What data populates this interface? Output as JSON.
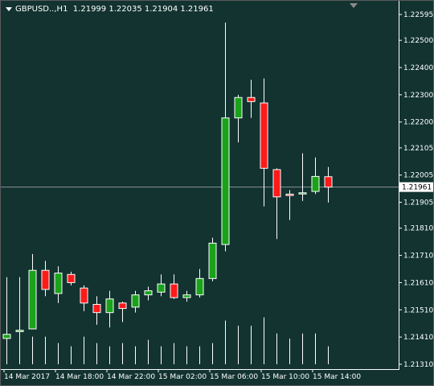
{
  "header": {
    "symbol": "GBPUSD..,H1",
    "ohlc": "1.21999 1.22035 1.21904 1.21961"
  },
  "colors": {
    "background": "#123330",
    "bull": "#1aa31a",
    "bear": "#ff1a1a",
    "wick": "#ffffff",
    "current_line": "#8a9391",
    "volume": "#ffffff"
  },
  "price_scale": {
    "min": 1.2131,
    "max": 1.22595,
    "labels": [
      "1.22595",
      "1.22500",
      "1.22400",
      "1.22300",
      "1.22200",
      "1.22105",
      "1.22005",
      "1.21905",
      "1.21810",
      "1.21710",
      "1.21610",
      "1.21510",
      "1.21410",
      "1.21310"
    ],
    "current_price": "1.21961"
  },
  "time_axis": {
    "labels": [
      "14 Mar 2017",
      "14 Mar 18:00",
      "14 Mar 22:00",
      "15 Mar 02:00",
      "15 Mar 06:00",
      "15 Mar 10:00",
      "15 Mar 14:00"
    ]
  },
  "chart_data": {
    "type": "candlestick",
    "symbol": "GBPUSD..",
    "timeframe": "H1",
    "candles": [
      {
        "open": 1.21405,
        "high": 1.2163,
        "low": 1.2138,
        "close": 1.2142
      },
      {
        "open": 1.2143,
        "high": 1.2163,
        "low": 1.2138,
        "close": 1.21435
      },
      {
        "open": 1.2144,
        "high": 1.21715,
        "low": 1.2144,
        "close": 1.21655
      },
      {
        "open": 1.21655,
        "high": 1.2169,
        "low": 1.2156,
        "close": 1.21585
      },
      {
        "open": 1.2157,
        "high": 1.2167,
        "low": 1.21535,
        "close": 1.21645
      },
      {
        "open": 1.2164,
        "high": 1.2165,
        "low": 1.216,
        "close": 1.2161
      },
      {
        "open": 1.2159,
        "high": 1.216,
        "low": 1.21505,
        "close": 1.21535
      },
      {
        "open": 1.2153,
        "high": 1.2156,
        "low": 1.21455,
        "close": 1.215
      },
      {
        "open": 1.215,
        "high": 1.2158,
        "low": 1.21445,
        "close": 1.2155
      },
      {
        "open": 1.21535,
        "high": 1.2154,
        "low": 1.21465,
        "close": 1.21515
      },
      {
        "open": 1.2152,
        "high": 1.2158,
        "low": 1.215,
        "close": 1.21565
      },
      {
        "open": 1.21565,
        "high": 1.21595,
        "low": 1.21545,
        "close": 1.2158
      },
      {
        "open": 1.21575,
        "high": 1.2164,
        "low": 1.2156,
        "close": 1.21605
      },
      {
        "open": 1.21605,
        "high": 1.2164,
        "low": 1.2155,
        "close": 1.21555
      },
      {
        "open": 1.21555,
        "high": 1.2158,
        "low": 1.2154,
        "close": 1.21565
      },
      {
        "open": 1.21565,
        "high": 1.2166,
        "low": 1.21555,
        "close": 1.21625
      },
      {
        "open": 1.21625,
        "high": 1.21775,
        "low": 1.21615,
        "close": 1.21755
      },
      {
        "open": 1.2175,
        "high": 1.22565,
        "low": 1.21725,
        "close": 1.22215
      },
      {
        "open": 1.22215,
        "high": 1.223,
        "low": 1.22125,
        "close": 1.2229
      },
      {
        "open": 1.2229,
        "high": 1.22355,
        "low": 1.22215,
        "close": 1.22275
      },
      {
        "open": 1.2227,
        "high": 1.2236,
        "low": 1.2189,
        "close": 1.2203
      },
      {
        "open": 1.22025,
        "high": 1.2203,
        "low": 1.2177,
        "close": 1.21925
      },
      {
        "open": 1.21935,
        "high": 1.2195,
        "low": 1.2184,
        "close": 1.2193
      },
      {
        "open": 1.2194,
        "high": 1.22085,
        "low": 1.2191,
        "close": 1.2194
      },
      {
        "open": 1.21945,
        "high": 1.2207,
        "low": 1.21935,
        "close": 1.22
      },
      {
        "open": 1.21999,
        "high": 1.22035,
        "low": 1.21904,
        "close": 1.21961
      }
    ],
    "volume_relative": [
      0.33,
      0.33,
      0.43,
      0.43,
      0.33,
      0.28,
      0.43,
      0.33,
      0.28,
      0.33,
      0.28,
      0.38,
      0.28,
      0.33,
      0.28,
      0.28,
      0.33,
      0.68,
      0.6,
      0.6,
      0.73,
      0.48,
      0.4,
      0.48,
      0.48,
      0.28
    ]
  }
}
